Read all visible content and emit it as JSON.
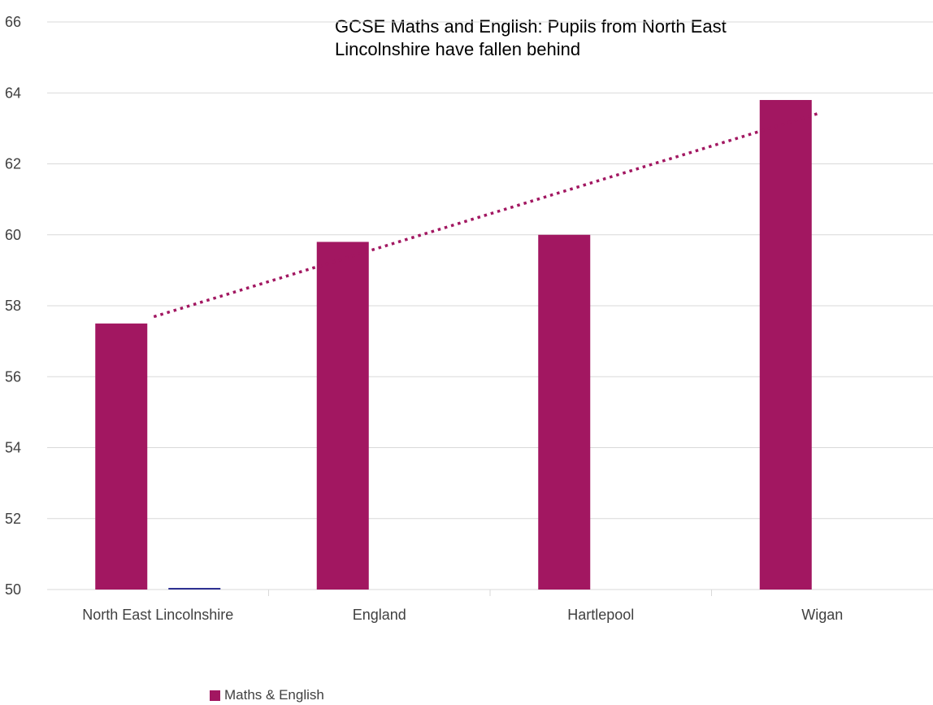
{
  "chart_data": {
    "type": "bar",
    "title_lines": [
      "GCSE Maths and English: Pupils from North East",
      "Lincolnshire have fallen behind"
    ],
    "categories": [
      "North East Lincolnshire",
      "England",
      "Hartlepool",
      "Wigan"
    ],
    "series": [
      {
        "name": "Maths & English",
        "values": [
          57.5,
          59.8,
          60.0,
          63.8
        ],
        "color": "#A21761"
      },
      {
        "name": "",
        "values": [
          50.0,
          null,
          null,
          null
        ],
        "color": "#2E3192"
      }
    ],
    "trendline": {
      "type": "linear",
      "style": "dotted",
      "series": "Maths & English",
      "color": "#A21761"
    },
    "ylim": [
      50,
      66
    ],
    "yticks": [
      50,
      52,
      54,
      56,
      58,
      60,
      62,
      64,
      66
    ],
    "grid": true,
    "legend_position": "bottom",
    "xlabel": "",
    "ylabel": ""
  },
  "legend": {
    "label": "Maths & English",
    "color": "#A21761"
  }
}
